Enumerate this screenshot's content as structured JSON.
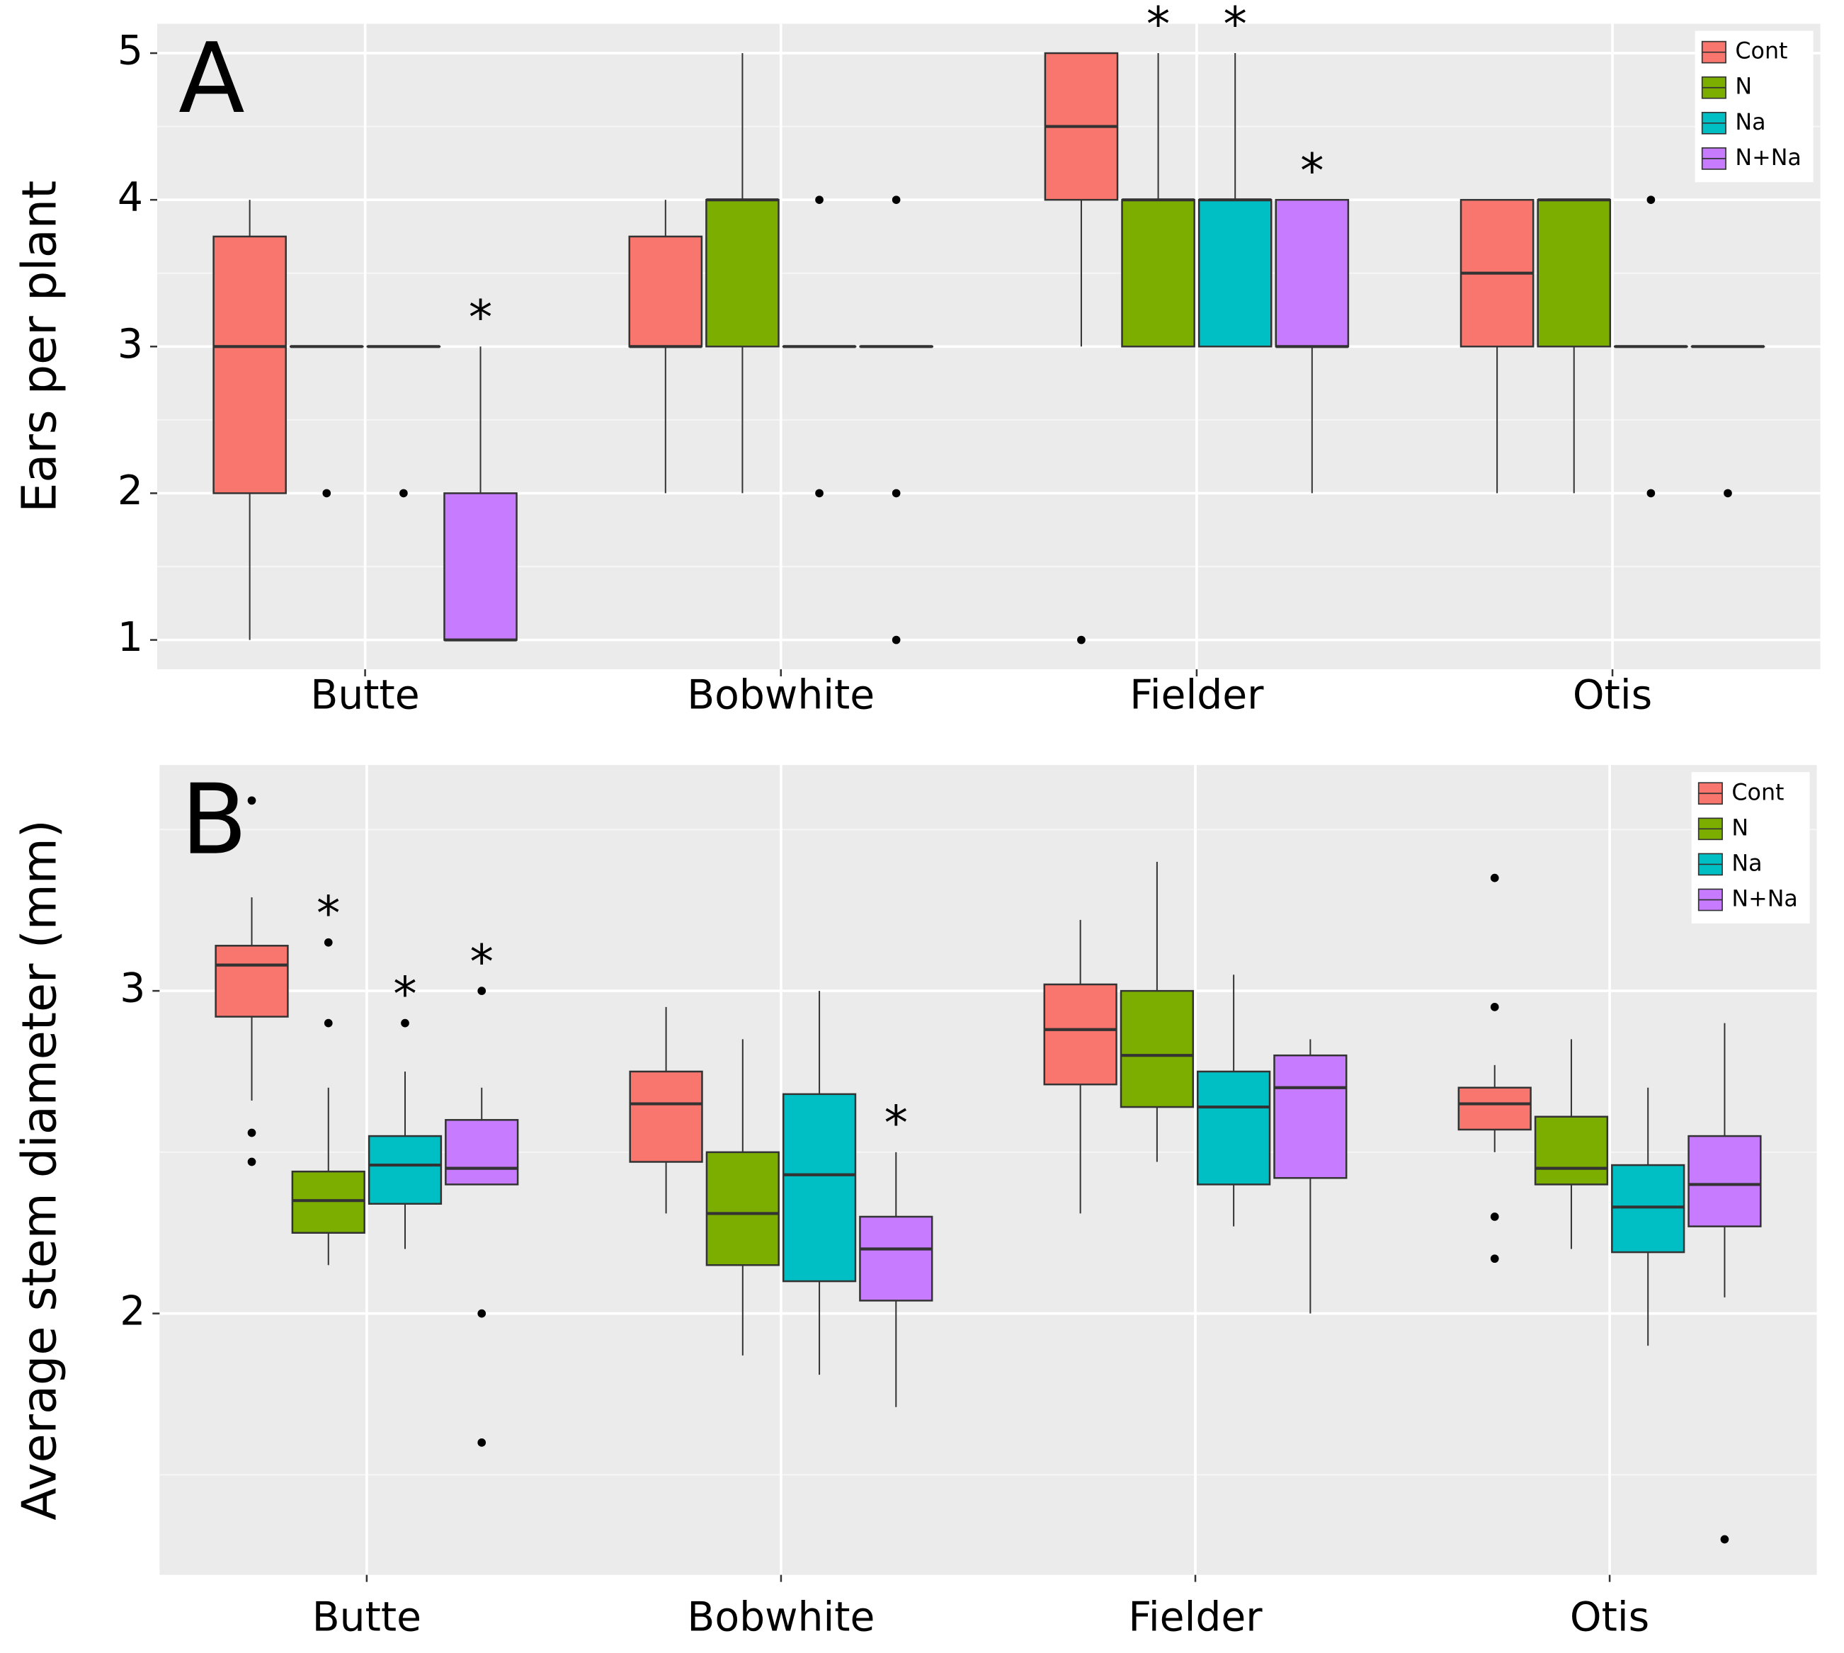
{
  "chart_data": [
    {
      "type": "box",
      "panel_label": "A",
      "ylabel": "Ears per plant",
      "categories": [
        "Butte",
        "Bobwhite",
        "Fielder",
        "Otis"
      ],
      "ylim": [
        0.8,
        5.2
      ],
      "yticks": [
        1,
        2,
        3,
        4,
        5
      ],
      "grid": true,
      "legend": "top-right",
      "series": [
        {
          "name": "Cont",
          "color": "#F8766D",
          "annotations": [
            null,
            null,
            null,
            null
          ],
          "boxes": [
            {
              "low": 1,
              "q1": 2,
              "median": 3,
              "q3": 3.75,
              "high": 4,
              "outliers": []
            },
            {
              "low": 2,
              "q1": 3,
              "median": 3,
              "q3": 3.75,
              "high": 4,
              "outliers": []
            },
            {
              "low": 3,
              "q1": 4,
              "median": 4.5,
              "q3": 5,
              "high": 5,
              "outliers": [
                1
              ]
            },
            {
              "low": 2,
              "q1": 3,
              "median": 3.5,
              "q3": 4,
              "high": 4,
              "outliers": []
            }
          ]
        },
        {
          "name": "N",
          "color": "#7CAE00",
          "annotations": [
            null,
            null,
            "*",
            null
          ],
          "boxes": [
            {
              "low": 3,
              "q1": 3,
              "median": 3,
              "q3": 3,
              "high": 3,
              "outliers": [
                2
              ]
            },
            {
              "low": 2,
              "q1": 3,
              "median": 4,
              "q3": 4,
              "high": 5,
              "outliers": []
            },
            {
              "low": 3,
              "q1": 3,
              "median": 4,
              "q3": 4,
              "high": 5,
              "outliers": []
            },
            {
              "low": 2,
              "q1": 3,
              "median": 4,
              "q3": 4,
              "high": 4,
              "outliers": []
            }
          ]
        },
        {
          "name": "Na",
          "color": "#00BFC4",
          "annotations": [
            null,
            null,
            "*",
            null
          ],
          "boxes": [
            {
              "low": 3,
              "q1": 3,
              "median": 3,
              "q3": 3,
              "high": 3,
              "outliers": [
                2
              ]
            },
            {
              "low": 3,
              "q1": 3,
              "median": 3,
              "q3": 3,
              "high": 3,
              "outliers": [
                4,
                2
              ]
            },
            {
              "low": 3,
              "q1": 3,
              "median": 4,
              "q3": 4,
              "high": 5,
              "outliers": []
            },
            {
              "low": 3,
              "q1": 3,
              "median": 3,
              "q3": 3,
              "high": 3,
              "outliers": [
                4,
                2
              ]
            }
          ]
        },
        {
          "name": "N+Na",
          "color": "#C77CFF",
          "annotations": [
            "*",
            null,
            "*",
            null
          ],
          "boxes": [
            {
              "low": 1,
              "q1": 1,
              "median": 1,
              "q3": 2,
              "high": 3,
              "outliers": []
            },
            {
              "low": 3,
              "q1": 3,
              "median": 3,
              "q3": 3,
              "high": 3,
              "outliers": [
                4,
                2,
                1
              ]
            },
            {
              "low": 2,
              "q1": 3,
              "median": 3,
              "q3": 4,
              "high": 4,
              "outliers": []
            },
            {
              "low": 3,
              "q1": 3,
              "median": 3,
              "q3": 3,
              "high": 3,
              "outliers": [
                2
              ]
            }
          ]
        }
      ]
    },
    {
      "type": "box",
      "panel_label": "B",
      "ylabel": "Average stem diameter (mm)",
      "categories": [
        "Butte",
        "Bobwhite",
        "Fielder",
        "Otis"
      ],
      "ylim": [
        1.19,
        3.7
      ],
      "yticks": [
        2,
        3
      ],
      "grid": true,
      "legend": "top-right",
      "series": [
        {
          "name": "Cont",
          "color": "#F8766D",
          "annotations": [
            null,
            null,
            null,
            null
          ],
          "boxes": [
            {
              "low": 2.66,
              "q1": 2.92,
              "median": 3.08,
              "q3": 3.14,
              "high": 3.29,
              "outliers": [
                3.59,
                2.56,
                2.47
              ]
            },
            {
              "low": 2.31,
              "q1": 2.47,
              "median": 2.65,
              "q3": 2.75,
              "high": 2.95,
              "outliers": []
            },
            {
              "low": 2.31,
              "q1": 2.71,
              "median": 2.88,
              "q3": 3.02,
              "high": 3.22,
              "outliers": []
            },
            {
              "low": 2.5,
              "q1": 2.57,
              "median": 2.65,
              "q3": 2.7,
              "high": 2.77,
              "outliers": [
                3.35,
                2.95,
                2.3,
                2.17
              ]
            }
          ]
        },
        {
          "name": "N",
          "color": "#7CAE00",
          "annotations": [
            "*",
            null,
            null,
            null
          ],
          "boxes": [
            {
              "low": 2.15,
              "q1": 2.25,
              "median": 2.35,
              "q3": 2.44,
              "high": 2.7,
              "outliers": [
                3.15,
                2.9
              ]
            },
            {
              "low": 1.87,
              "q1": 2.15,
              "median": 2.31,
              "q3": 2.5,
              "high": 2.85,
              "outliers": []
            },
            {
              "low": 2.47,
              "q1": 2.64,
              "median": 2.8,
              "q3": 3,
              "high": 3.4,
              "outliers": []
            },
            {
              "low": 2.2,
              "q1": 2.4,
              "median": 2.45,
              "q3": 2.61,
              "high": 2.85,
              "outliers": []
            }
          ]
        },
        {
          "name": "Na",
          "color": "#00BFC4",
          "annotations": [
            "*",
            null,
            null,
            null
          ],
          "boxes": [
            {
              "low": 2.2,
              "q1": 2.34,
              "median": 2.46,
              "q3": 2.55,
              "high": 2.75,
              "outliers": [
                2.9
              ]
            },
            {
              "low": 1.81,
              "q1": 2.1,
              "median": 2.43,
              "q3": 2.68,
              "high": 3,
              "outliers": []
            },
            {
              "low": 2.27,
              "q1": 2.4,
              "median": 2.64,
              "q3": 2.75,
              "high": 3.05,
              "outliers": []
            },
            {
              "low": 1.9,
              "q1": 2.19,
              "median": 2.33,
              "q3": 2.46,
              "high": 2.7,
              "outliers": []
            }
          ]
        },
        {
          "name": "N+Na",
          "color": "#C77CFF",
          "annotations": [
            "*",
            "*",
            null,
            null
          ],
          "boxes": [
            {
              "low": 2.4,
              "q1": 2.4,
              "median": 2.45,
              "q3": 2.6,
              "high": 2.7,
              "outliers": [
                3,
                2,
                1.6
              ]
            },
            {
              "low": 1.71,
              "q1": 2.04,
              "median": 2.2,
              "q3": 2.3,
              "high": 2.5,
              "outliers": []
            },
            {
              "low": 2,
              "q1": 2.42,
              "median": 2.7,
              "q3": 2.8,
              "high": 2.85,
              "outliers": []
            },
            {
              "low": 2.05,
              "q1": 2.27,
              "median": 2.4,
              "q3": 2.55,
              "high": 2.9,
              "outliers": [
                1.3
              ]
            }
          ]
        }
      ]
    }
  ]
}
